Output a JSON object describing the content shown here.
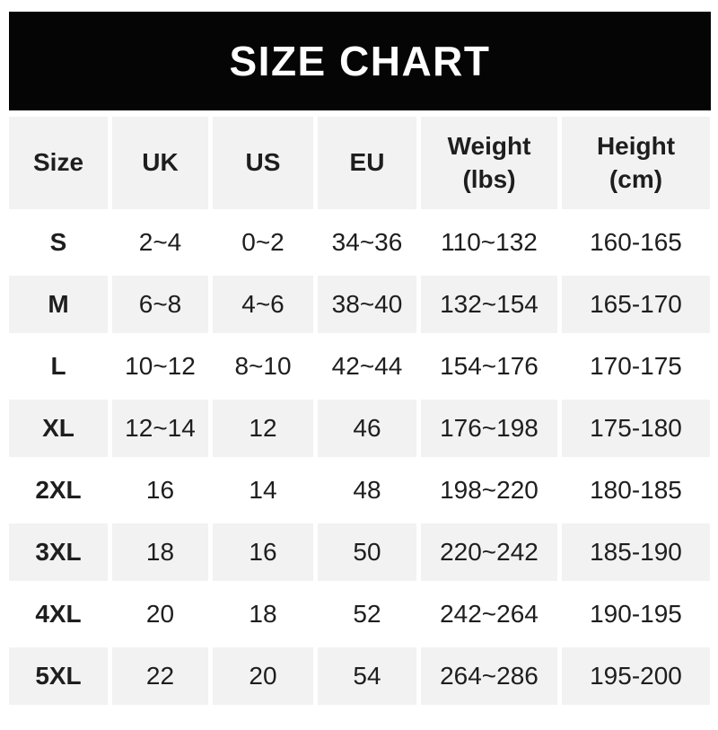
{
  "banner": {
    "title": "SIZE CHART"
  },
  "colors": {
    "banner_bg": "#050505",
    "banner_text": "#ffffff",
    "cell_gray": "#f2f2f2",
    "cell_white": "#ffffff",
    "text": "#1e1e1e"
  },
  "table": {
    "header_display": {
      "size": "Size",
      "uk": "UK",
      "us": "US",
      "eu": "EU",
      "weight": "Weight\n(lbs)",
      "height": "Height\n(cm)"
    }
  },
  "chart_data": {
    "type": "table",
    "title": "SIZE CHART",
    "columns": [
      "Size",
      "UK",
      "US",
      "EU",
      "Weight (lbs)",
      "Height (cm)"
    ],
    "rows": [
      [
        "S",
        "2~4",
        "0~2",
        "34~36",
        "110~132",
        "160-165"
      ],
      [
        "M",
        "6~8",
        "4~6",
        "38~40",
        "132~154",
        "165-170"
      ],
      [
        "L",
        "10~12",
        "8~10",
        "42~44",
        "154~176",
        "170-175"
      ],
      [
        "XL",
        "12~14",
        "12",
        "46",
        "176~198",
        "175-180"
      ],
      [
        "2XL",
        "16",
        "14",
        "48",
        "198~220",
        "180-185"
      ],
      [
        "3XL",
        "18",
        "16",
        "50",
        "220~242",
        "185-190"
      ],
      [
        "4XL",
        "20",
        "18",
        "52",
        "242~264",
        "190-195"
      ],
      [
        "5XL",
        "22",
        "20",
        "54",
        "264~286",
        "195-200"
      ]
    ],
    "layout_hints": {
      "header_row_background": "#f2f2f2",
      "row_striping": "white/gray alternating starting white",
      "range_separator_weight": "~",
      "range_separator_height": "-"
    }
  }
}
